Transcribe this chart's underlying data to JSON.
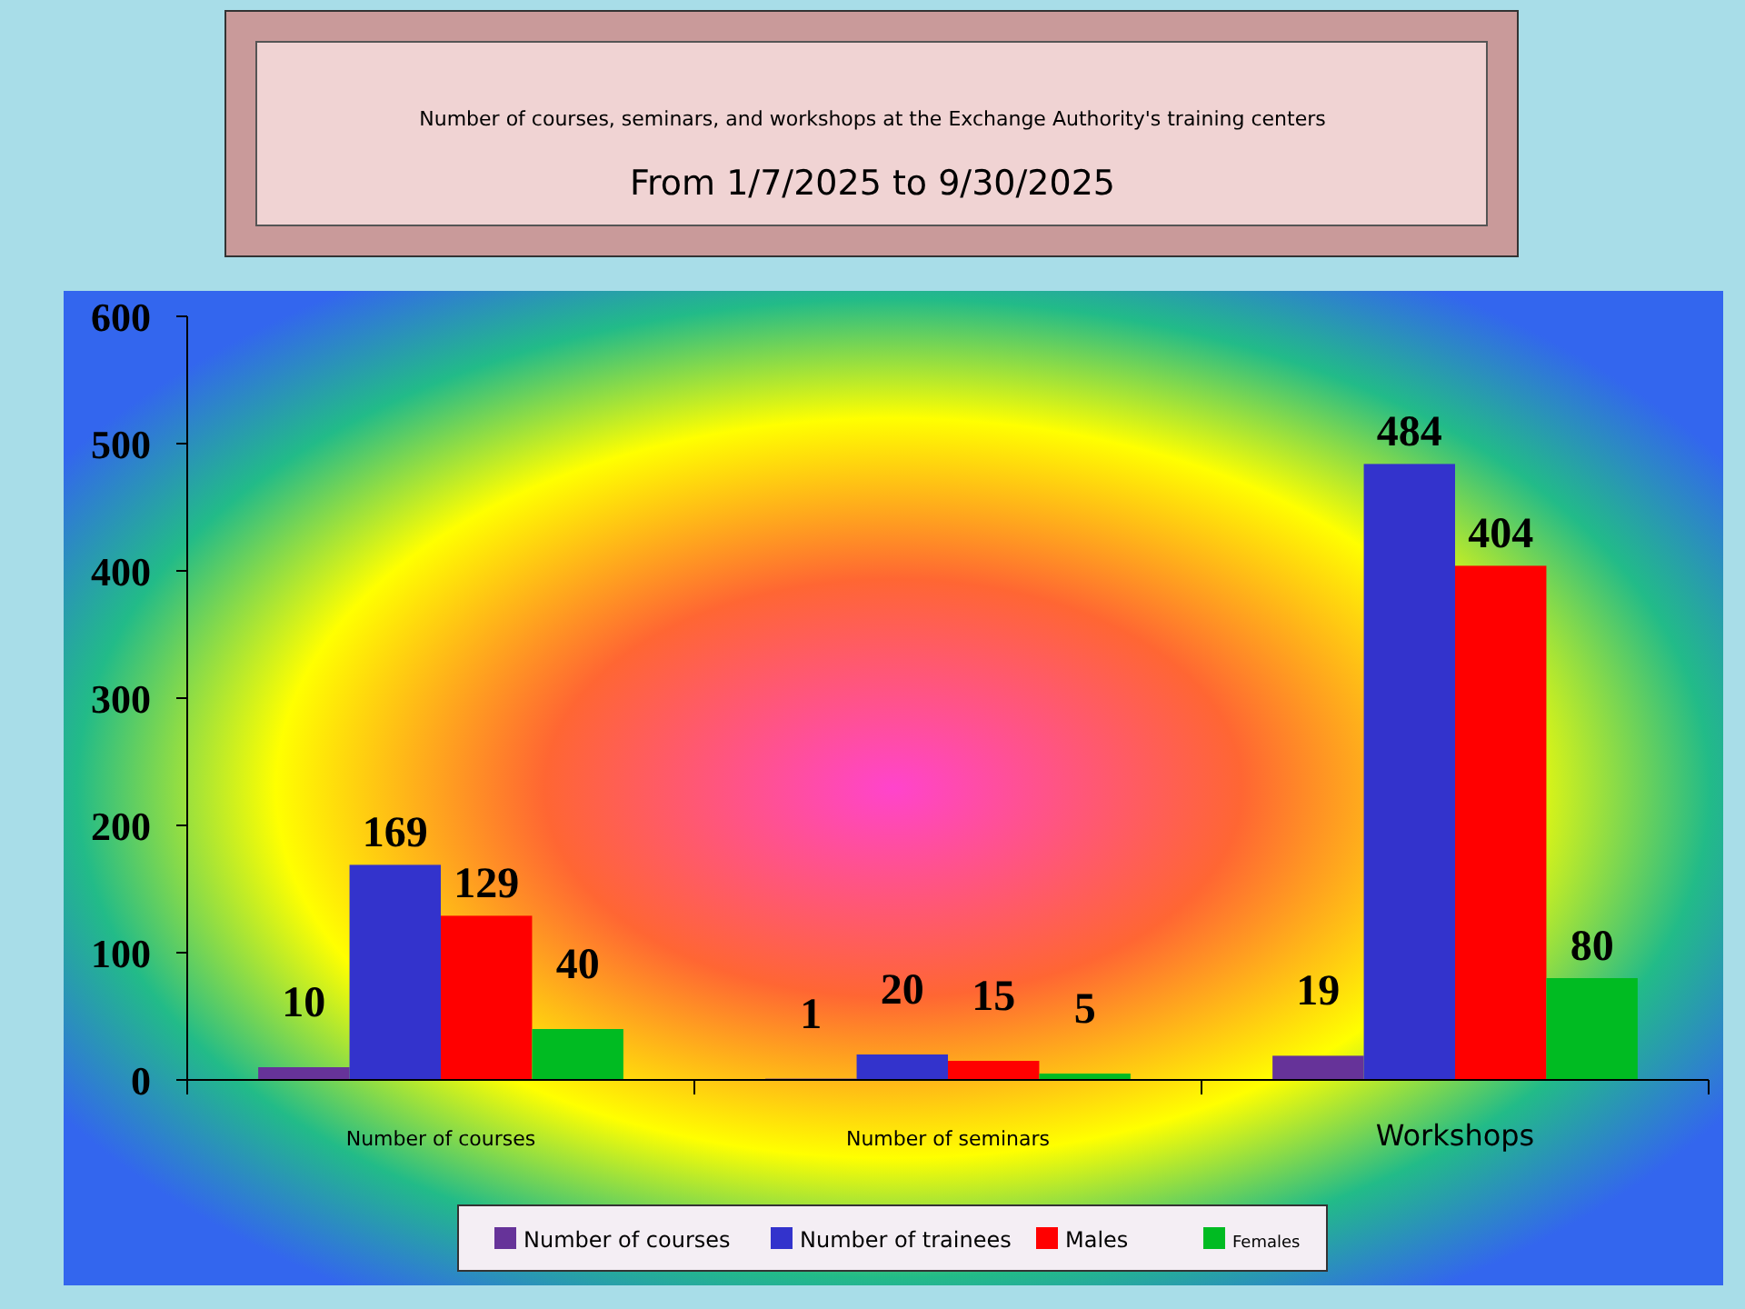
{
  "chart_data": {
    "type": "bar",
    "title": "Number of courses, seminars, and workshops at the Exchange Authority's training centers",
    "subtitle": "From 1/7/2025 to 9/30/2025",
    "categories": [
      "Number of courses",
      "Number of seminars",
      "Workshops"
    ],
    "series": [
      {
        "name": "Number of courses",
        "color": "#663399",
        "values": [
          10,
          1,
          19
        ]
      },
      {
        "name": "Number of trainees",
        "color": "#3333cc",
        "values": [
          169,
          20,
          484
        ]
      },
      {
        "name": "Males",
        "color": "#ff0000",
        "values": [
          129,
          15,
          404
        ]
      },
      {
        "name": "Females",
        "color": "#00bb22",
        "values": [
          40,
          5,
          80
        ]
      }
    ],
    "ylim": [
      0,
      600
    ],
    "yticks": [
      0,
      100,
      200,
      300,
      400,
      500,
      600
    ],
    "data_labels": true,
    "legend": "bottom"
  }
}
